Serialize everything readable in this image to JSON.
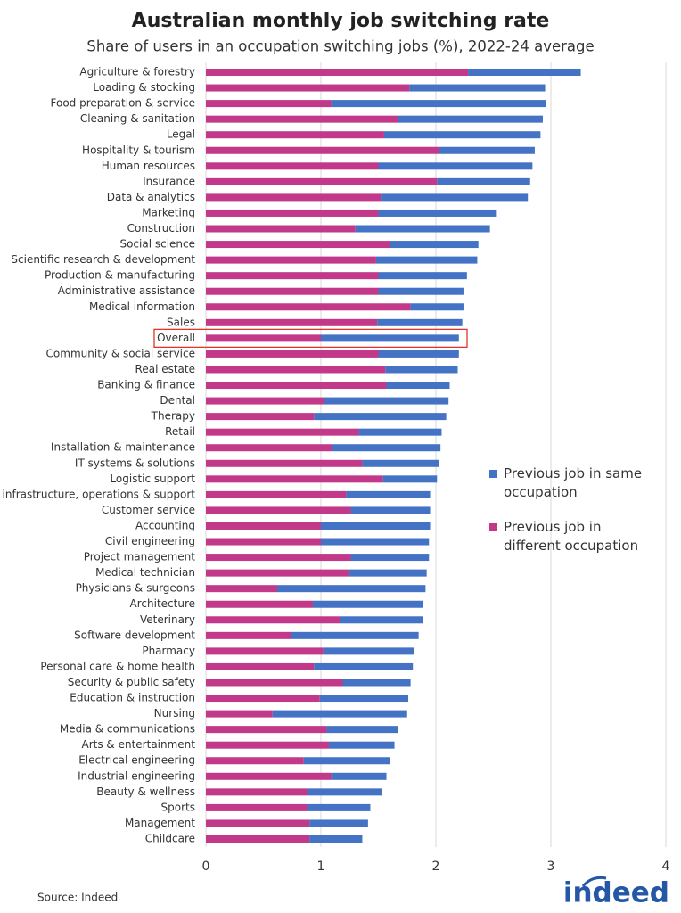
{
  "chart_data": {
    "type": "stacked-bar-horizontal",
    "title": "Australian monthly job switching rate",
    "subtitle": "Share of users in an occupation switching jobs (%), 2022-24 average",
    "source": "Source: Indeed",
    "logo": "indeed",
    "categories": [
      "Agriculture & forestry",
      "Loading & stocking",
      "Food preparation & service",
      "Cleaning & sanitation",
      "Legal",
      "Hospitality & tourism",
      "Human resources",
      "Insurance",
      "Data & analytics",
      "Marketing",
      "Construction",
      "Social science",
      "Scientific research & development",
      "Production & manufacturing",
      "Administrative assistance",
      "Medical information",
      "Sales",
      "Overall",
      "Community & social service",
      "Real estate",
      "Banking & finance",
      "Dental",
      "Therapy",
      "Retail",
      "Installation & maintenance",
      "IT systems & solutions",
      "Logistic support",
      "IT infrastructure, operations & support",
      "Customer service",
      "Accounting",
      "Civil engineering",
      "Project management",
      "Medical technician",
      "Physicians & surgeons",
      "Architecture",
      "Veterinary",
      "Software development",
      "Pharmacy",
      "Personal care & home health",
      "Security & public safety",
      "Education & instruction",
      "Nursing",
      "Media & communications",
      "Arts & entertainment",
      "Electrical engineering",
      "Industrial engineering",
      "Beauty & wellness",
      "Sports",
      "Management",
      "Childcare"
    ],
    "series": [
      {
        "name": "Previous job in different occupation",
        "color": "#c2398a",
        "values": [
          2.28,
          1.77,
          1.09,
          1.67,
          1.55,
          2.03,
          1.5,
          2.01,
          1.52,
          1.5,
          1.3,
          1.6,
          1.48,
          1.5,
          1.5,
          1.78,
          1.49,
          1.0,
          1.5,
          1.56,
          1.57,
          1.03,
          0.94,
          1.33,
          1.1,
          1.36,
          1.54,
          1.22,
          1.26,
          1.0,
          1.0,
          1.26,
          1.24,
          0.62,
          0.93,
          1.17,
          0.74,
          1.02,
          0.94,
          1.19,
          0.99,
          0.58,
          1.05,
          1.07,
          0.85,
          1.09,
          0.88,
          0.88,
          0.9,
          0.9
        ]
      },
      {
        "name": "Previous job in same occupation",
        "color": "#4472c4",
        "values": [
          0.98,
          1.18,
          1.87,
          1.26,
          1.36,
          0.83,
          1.34,
          0.81,
          1.28,
          1.03,
          1.17,
          0.77,
          0.88,
          0.77,
          0.74,
          0.46,
          0.74,
          1.2,
          0.7,
          0.63,
          0.55,
          1.08,
          1.15,
          0.72,
          0.94,
          0.67,
          0.47,
          0.73,
          0.69,
          0.95,
          0.94,
          0.68,
          0.68,
          1.29,
          0.96,
          0.72,
          1.11,
          0.79,
          0.86,
          0.59,
          0.77,
          1.17,
          0.62,
          0.57,
          0.75,
          0.48,
          0.65,
          0.55,
          0.51,
          0.46
        ]
      }
    ],
    "xlim": [
      0,
      4
    ],
    "xticks": [
      0,
      1,
      2,
      3,
      4
    ],
    "grid": true,
    "highlight": "Overall",
    "highlight_color": "#e5332a"
  }
}
